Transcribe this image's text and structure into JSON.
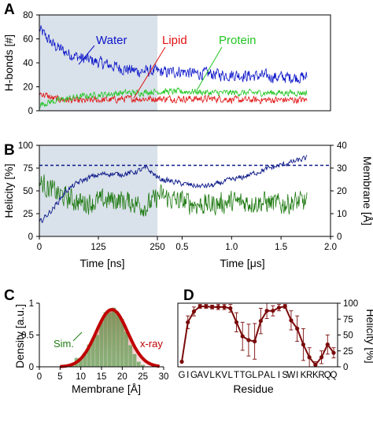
{
  "colors": {
    "water": "#0b14c8",
    "lipid": "#e01010",
    "protein": "#22c522",
    "helicity": "#0d1a8a",
    "membrane": "#1f7a12",
    "xray": "#c00000",
    "sim": "#5f9a4e",
    "residue_curve": "#7a0a0a",
    "shade": "#d9e1ea"
  },
  "chart_data": [
    {
      "panel": "A",
      "type": "line",
      "ylabel": "H-bonds [#]",
      "ylim": [
        0,
        80
      ],
      "yticks": [
        0,
        20,
        40,
        60,
        80
      ],
      "shaded_region": "equilibration phase (left of 250 ns)",
      "series": [
        {
          "name": "Water",
          "approx_values": [
            68,
            55,
            48,
            44,
            41,
            38,
            35,
            33,
            33,
            32,
            33,
            31,
            31,
            30,
            30,
            29,
            29,
            28,
            28,
            28
          ]
        },
        {
          "name": "Lipid",
          "approx_values": [
            15,
            10,
            9,
            8,
            9,
            9,
            10,
            10,
            10,
            10,
            10,
            10,
            10,
            10,
            9,
            9,
            9,
            9,
            9,
            9
          ]
        },
        {
          "name": "Protein",
          "approx_values": [
            5,
            8,
            10,
            12,
            13,
            14,
            15,
            15,
            16,
            16,
            16,
            16,
            15,
            15,
            15,
            15,
            15,
            15,
            15,
            15
          ]
        }
      ]
    },
    {
      "panel": "B",
      "type": "line",
      "ylabel_left": "Helicity [%]",
      "ylabel_right": "Membrane [Å]",
      "ylim_left": [
        0,
        100
      ],
      "ylim_right": [
        0,
        40
      ],
      "yticks_left": [
        0,
        25,
        50,
        75,
        100
      ],
      "yticks_right": [
        0,
        10,
        20,
        30,
        40
      ],
      "xlabel_left": "Time [ns]",
      "xlabel_right": "Time [μs]",
      "xticks_left": [
        "0",
        "125",
        "250"
      ],
      "xticks_right": [
        "0.5",
        "1.0",
        "1.5",
        "2.0"
      ],
      "reference_helicity": 78,
      "series": [
        {
          "name": "Helicity",
          "approx_values": [
            15,
            30,
            50,
            60,
            66,
            69,
            68,
            70,
            75,
            63,
            60,
            57,
            55,
            56,
            61,
            64,
            69,
            74,
            78,
            82,
            86
          ]
        },
        {
          "name": "Membrane",
          "approx_values": [
            24,
            20,
            17,
            15,
            15,
            16,
            16,
            15,
            13,
            18,
            16,
            15,
            14,
            14,
            15,
            15,
            15,
            15,
            14,
            15,
            15
          ]
        }
      ]
    },
    {
      "panel": "C",
      "type": "bar",
      "xlabel": "Membrane [Å]",
      "ylabel": "Density [a.u.]",
      "xlim": [
        0,
        30
      ],
      "ylim": [
        0,
        1
      ],
      "xticks": [
        0,
        5,
        10,
        15,
        20,
        25,
        30
      ],
      "yticks": [
        0,
        0.5,
        1
      ],
      "series": [
        {
          "name": "Sim.",
          "bin_centers": [
            7,
            8,
            9,
            10,
            11,
            12,
            13,
            14,
            15,
            16,
            17,
            18,
            19,
            20,
            21,
            22,
            23,
            24,
            25
          ],
          "values": [
            0.02,
            0.05,
            0.14,
            0.12,
            0.22,
            0.35,
            0.45,
            0.5,
            0.7,
            0.86,
            0.85,
            0.93,
            0.82,
            0.75,
            0.55,
            0.34,
            0.2,
            0.08,
            0.03
          ]
        },
        {
          "name": "x-ray",
          "mean": 17.5,
          "sd": 3.8,
          "peak": 0.9
        }
      ]
    },
    {
      "panel": "D",
      "type": "line",
      "xlabel": "Residue",
      "ylabel": "Helicity [%]",
      "ylim": [
        0,
        100
      ],
      "yticks": [
        0,
        25,
        50,
        75,
        100
      ],
      "categories": [
        "G",
        "I",
        "G",
        "A",
        "V",
        "L",
        "K",
        "V",
        "L",
        "T",
        "T",
        "G",
        "L",
        "P",
        "A",
        "L",
        "I",
        "S",
        "W",
        "I",
        "K",
        "R",
        "K",
        "R",
        "Q",
        "Q"
      ],
      "values": [
        8,
        70,
        87,
        95,
        95,
        94,
        94,
        94,
        92,
        70,
        48,
        42,
        40,
        72,
        88,
        88,
        93,
        95,
        73,
        60,
        35,
        15,
        3,
        15,
        35,
        22
      ],
      "errors": [
        0,
        10,
        7,
        3,
        3,
        3,
        4,
        4,
        6,
        15,
        22,
        25,
        28,
        20,
        12,
        8,
        5,
        3,
        15,
        20,
        25,
        15,
        5,
        10,
        15,
        8
      ]
    }
  ],
  "labels": {
    "panel_a": "A",
    "panel_b": "B",
    "panel_c": "C",
    "panel_d": "D",
    "water": "Water",
    "lipid": "Lipid",
    "protein": "Protein",
    "sim": "Sim.",
    "xray": "x-ray"
  }
}
